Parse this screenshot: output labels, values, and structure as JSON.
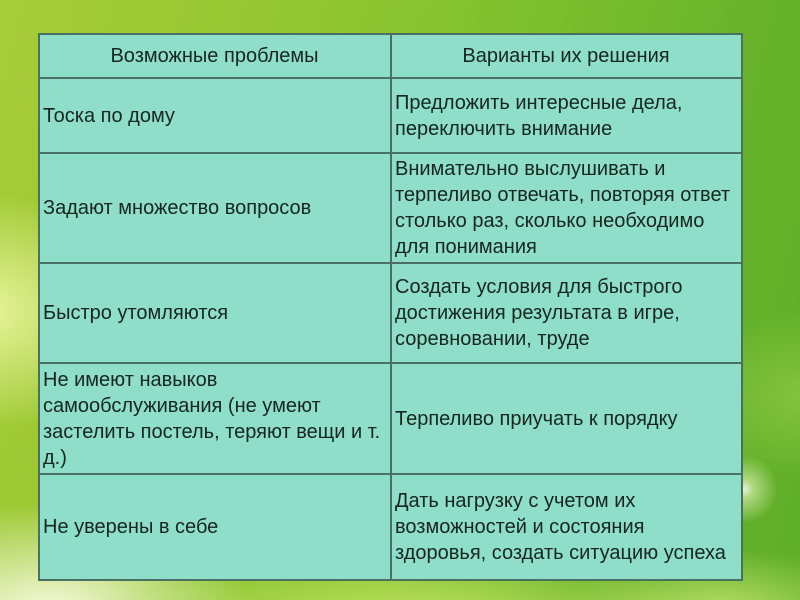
{
  "slide": {
    "colors": {
      "background_green_light": "#a7cc38",
      "background_green_dark": "#5fae29",
      "glow_highlight": "#fafce2",
      "cell_background": "#8edeca",
      "border_outer": "#2f3e36",
      "border_inner": "#4a6f63",
      "text": "#17261f"
    },
    "table": {
      "columns": [
        "Возможные проблемы",
        "Варианты их решения"
      ],
      "rows": [
        {
          "problem": "Тоска по дому",
          "solution": "Предложить интересные дела, переключить внимание"
        },
        {
          "problem": "Задают множество вопросов",
          "solution": "Внимательно выслушивать и терпеливо отвечать, повторяя ответ столько раз, сколько необходимо для понимания"
        },
        {
          "problem": "Быстро утомляются",
          "solution": "Создать условия для быстрого достижения результата в игре, соревновании, труде"
        },
        {
          "problem": "Не имеют навыков самообслуживания (не умеют застелить постель, теряют вещи и т. д.)",
          "solution": "Терпеливо приучать к порядку"
        },
        {
          "problem": "Не уверены в себе",
          "solution": "Дать нагрузку с учетом их возможностей и состояния здоровья, создать ситуацию успеха"
        }
      ]
    }
  }
}
